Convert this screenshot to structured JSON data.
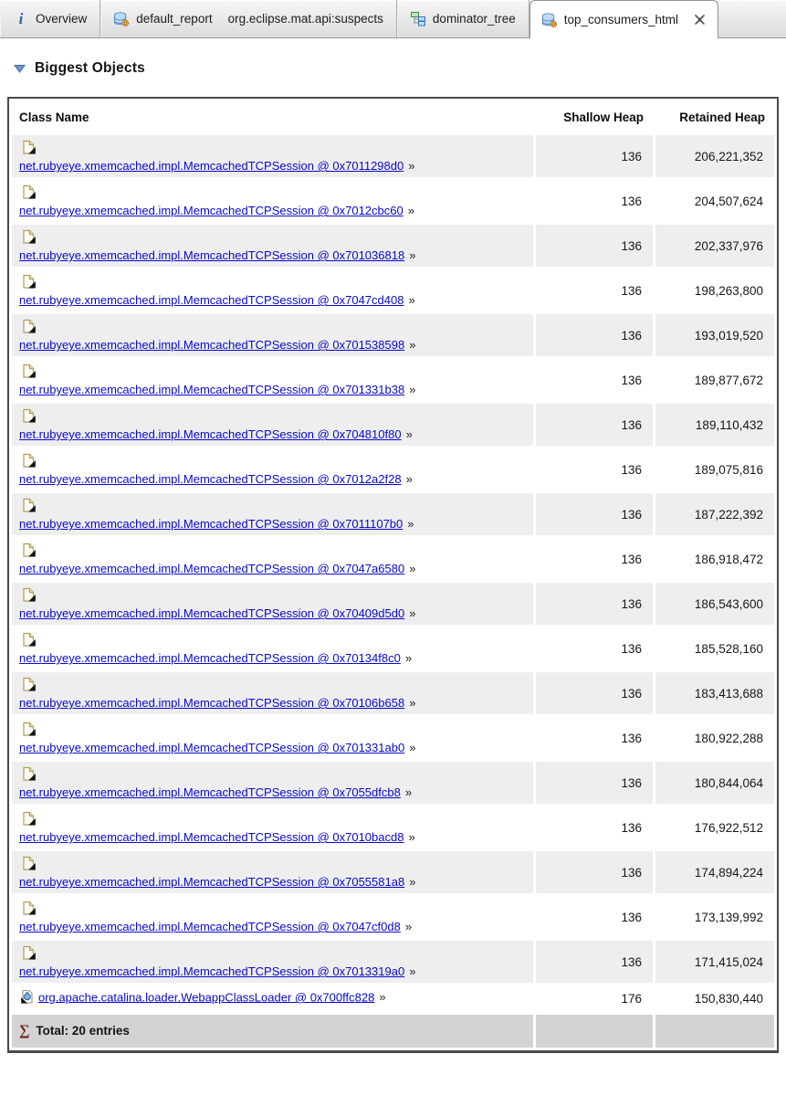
{
  "tabs": [
    {
      "label": "Overview",
      "detail": "",
      "icon": "info-icon",
      "active": false,
      "closable": false
    },
    {
      "label": "default_report",
      "detail": "org.eclipse.mat.api:suspects",
      "icon": "report-icon",
      "active": false,
      "closable": false
    },
    {
      "label": "dominator_tree",
      "detail": "",
      "icon": "tree-icon",
      "active": false,
      "closable": false
    },
    {
      "label": "top_consumers_html",
      "detail": "",
      "icon": "report-icon",
      "active": true,
      "closable": true
    }
  ],
  "section": {
    "title": "Biggest Objects"
  },
  "table": {
    "headers": {
      "class_name": "Class Name",
      "shallow_heap": "Shallow Heap",
      "retained_heap": "Retained Heap"
    },
    "link_suffix": "»",
    "rows": [
      {
        "icon": "object-icon",
        "label": "net.rubyeye.xmemcached.impl.MemcachedTCPSession @ 0x7011298d0",
        "shallow": "136",
        "retained": "206,221,352"
      },
      {
        "icon": "object-icon",
        "label": "net.rubyeye.xmemcached.impl.MemcachedTCPSession @ 0x7012cbc60",
        "shallow": "136",
        "retained": "204,507,624"
      },
      {
        "icon": "object-icon",
        "label": "net.rubyeye.xmemcached.impl.MemcachedTCPSession @ 0x701036818",
        "shallow": "136",
        "retained": "202,337,976"
      },
      {
        "icon": "object-icon",
        "label": "net.rubyeye.xmemcached.impl.MemcachedTCPSession @ 0x7047cd408",
        "shallow": "136",
        "retained": "198,263,800"
      },
      {
        "icon": "object-icon",
        "label": "net.rubyeye.xmemcached.impl.MemcachedTCPSession @ 0x701538598",
        "shallow": "136",
        "retained": "193,019,520"
      },
      {
        "icon": "object-icon",
        "label": "net.rubyeye.xmemcached.impl.MemcachedTCPSession @ 0x701331b38",
        "shallow": "136",
        "retained": "189,877,672"
      },
      {
        "icon": "object-icon",
        "label": "net.rubyeye.xmemcached.impl.MemcachedTCPSession @ 0x704810f80",
        "shallow": "136",
        "retained": "189,110,432"
      },
      {
        "icon": "object-icon",
        "label": "net.rubyeye.xmemcached.impl.MemcachedTCPSession @ 0x7012a2f28",
        "shallow": "136",
        "retained": "189,075,816"
      },
      {
        "icon": "object-icon",
        "label": "net.rubyeye.xmemcached.impl.MemcachedTCPSession @ 0x7011107b0",
        "shallow": "136",
        "retained": "187,222,392"
      },
      {
        "icon": "object-icon",
        "label": "net.rubyeye.xmemcached.impl.MemcachedTCPSession @ 0x7047a6580",
        "shallow": "136",
        "retained": "186,918,472"
      },
      {
        "icon": "object-icon",
        "label": "net.rubyeye.xmemcached.impl.MemcachedTCPSession @ 0x70409d5d0",
        "shallow": "136",
        "retained": "186,543,600"
      },
      {
        "icon": "object-icon",
        "label": "net.rubyeye.xmemcached.impl.MemcachedTCPSession @ 0x70134f8c0",
        "shallow": "136",
        "retained": "185,528,160"
      },
      {
        "icon": "object-icon",
        "label": "net.rubyeye.xmemcached.impl.MemcachedTCPSession @ 0x70106b658",
        "shallow": "136",
        "retained": "183,413,688"
      },
      {
        "icon": "object-icon",
        "label": "net.rubyeye.xmemcached.impl.MemcachedTCPSession @ 0x701331ab0",
        "shallow": "136",
        "retained": "180,922,288"
      },
      {
        "icon": "object-icon",
        "label": "net.rubyeye.xmemcached.impl.MemcachedTCPSession @ 0x7055dfcb8",
        "shallow": "136",
        "retained": "180,844,064"
      },
      {
        "icon": "object-icon",
        "label": "net.rubyeye.xmemcached.impl.MemcachedTCPSession @ 0x7010bacd8",
        "shallow": "136",
        "retained": "176,922,512"
      },
      {
        "icon": "object-icon",
        "label": "net.rubyeye.xmemcached.impl.MemcachedTCPSession @ 0x7055581a8",
        "shallow": "136",
        "retained": "174,894,224"
      },
      {
        "icon": "object-icon",
        "label": "net.rubyeye.xmemcached.impl.MemcachedTCPSession @ 0x7047cf0d8",
        "shallow": "136",
        "retained": "173,139,992"
      },
      {
        "icon": "object-icon",
        "label": "net.rubyeye.xmemcached.impl.MemcachedTCPSession @ 0x7013319a0",
        "shallow": "136",
        "retained": "171,415,024"
      },
      {
        "icon": "classloader-icon",
        "label": "org.apache.catalina.loader.WebappClassLoader @ 0x700ffc828",
        "shallow": "176",
        "retained": "150,830,440"
      }
    ],
    "total": {
      "sigma": "∑",
      "label": "Total: 20 entries"
    }
  },
  "colors": {
    "link": "#0909c8",
    "row_shaded": "#eeeeee",
    "total_row": "#d3d3d3",
    "tab_active_bg": "#ffffff",
    "accent_info": "#2b5fb0"
  }
}
